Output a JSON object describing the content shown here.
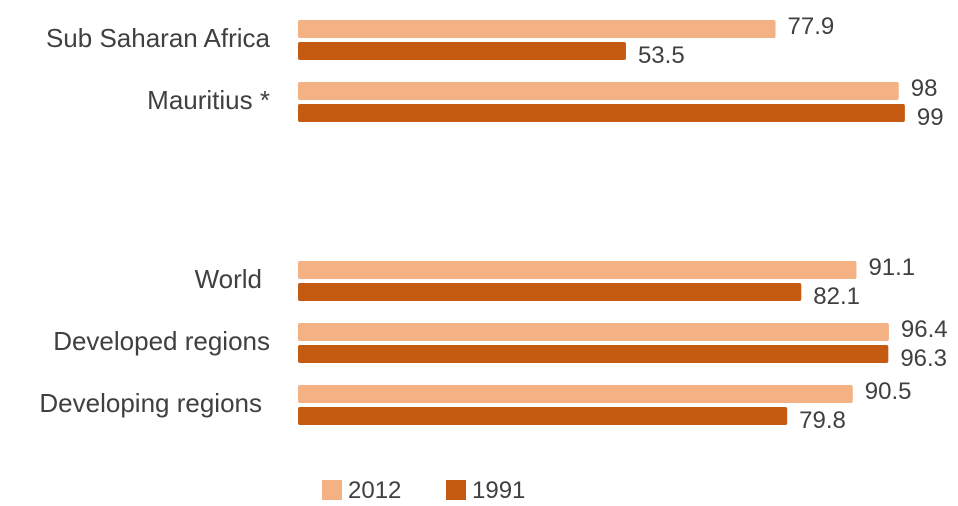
{
  "chart_data": {
    "type": "bar",
    "orientation": "horizontal",
    "categories": [
      "Sub Saharan Africa",
      "Mauritius *",
      "",
      "World",
      "Developed regions",
      "Developing regions"
    ],
    "series": [
      {
        "name": "2012",
        "color": "#F4B183",
        "values": [
          77.9,
          98,
          null,
          91.1,
          96.4,
          90.5
        ],
        "labels": [
          "77.9",
          "98",
          "",
          "91.1",
          "96.4",
          "90.5"
        ]
      },
      {
        "name": "1991",
        "color": "#C55A11",
        "values": [
          53.5,
          99,
          null,
          82.1,
          96.3,
          79.8
        ],
        "labels": [
          "53.5",
          "99",
          "",
          "82.1",
          "96.3",
          "79.8"
        ]
      }
    ],
    "xlim": [
      0,
      100
    ],
    "grid": false,
    "legend": "bottom"
  }
}
